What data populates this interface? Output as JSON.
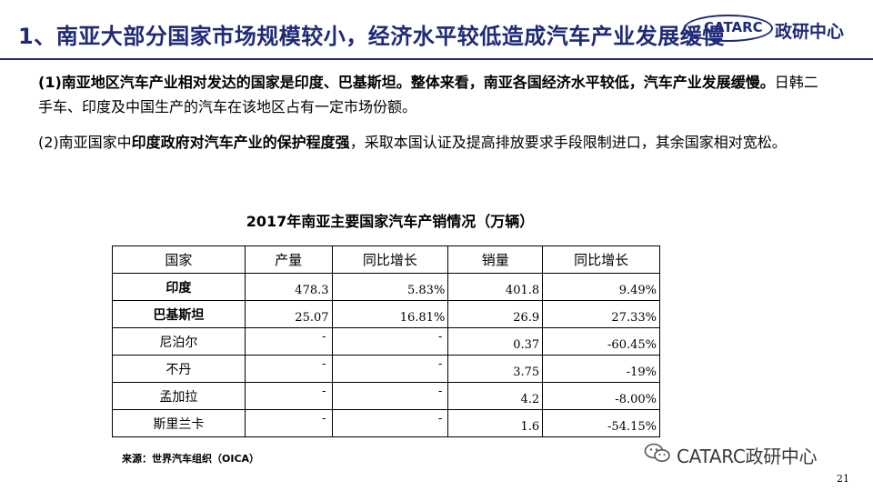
{
  "slide": {
    "title": "1、南亚大部分国家市场规模较小，经济水平较低造成汽车产业发展缓慢",
    "logo_abbr": "CATARC",
    "logo_text": "政研中心",
    "page_number": "21"
  },
  "body": {
    "para1_bold": "(1)南亚地区汽车产业相对发达的国家是印度、巴基斯坦。整体来看，南亚各国经济水平较低，汽车产业发展缓慢。",
    "para1_normal": "日韩二手车、印度及中国生产的汽车在该地区占有一定市场份额。",
    "para2_pre": "(2)南亚国家中",
    "para2_bold": "印度政府对汽车产业的保护程度强",
    "para2_post": "，采取本国认证及提高排放要求手段限制进口，其余国家相对宽松。"
  },
  "table": {
    "title": "2017年南亚主要国家汽车产销情况（万辆）",
    "headers": [
      "国家",
      "产量",
      "同比增长",
      "销量",
      "同比增长"
    ],
    "rows": [
      {
        "country": "印度",
        "production": "478.3",
        "prod_growth": "5.83%",
        "sales": "401.8",
        "sales_growth": "9.49%"
      },
      {
        "country": "巴基斯坦",
        "production": "25.07",
        "prod_growth": "16.81%",
        "sales": "26.9",
        "sales_growth": "27.33%"
      },
      {
        "country": "尼泊尔",
        "production": "-",
        "prod_growth": "-",
        "sales": "0.37",
        "sales_growth": "-60.45%"
      },
      {
        "country": "不丹",
        "production": "-",
        "prod_growth": "-",
        "sales": "3.75",
        "sales_growth": "-19%"
      },
      {
        "country": "孟加拉",
        "production": "-",
        "prod_growth": "-",
        "sales": "4.2",
        "sales_growth": "-8.00%"
      },
      {
        "country": "斯里兰卡",
        "production": "-",
        "prod_growth": "-",
        "sales": "1.6",
        "sales_growth": "-54.15%"
      }
    ],
    "source": "来源：世界汽车组织（OICA）"
  },
  "watermark": {
    "text": "CATARC政研中心",
    "icon": "wechat-icon"
  },
  "colors": {
    "title": "#1f2a78",
    "rule": "#1f2a78"
  }
}
